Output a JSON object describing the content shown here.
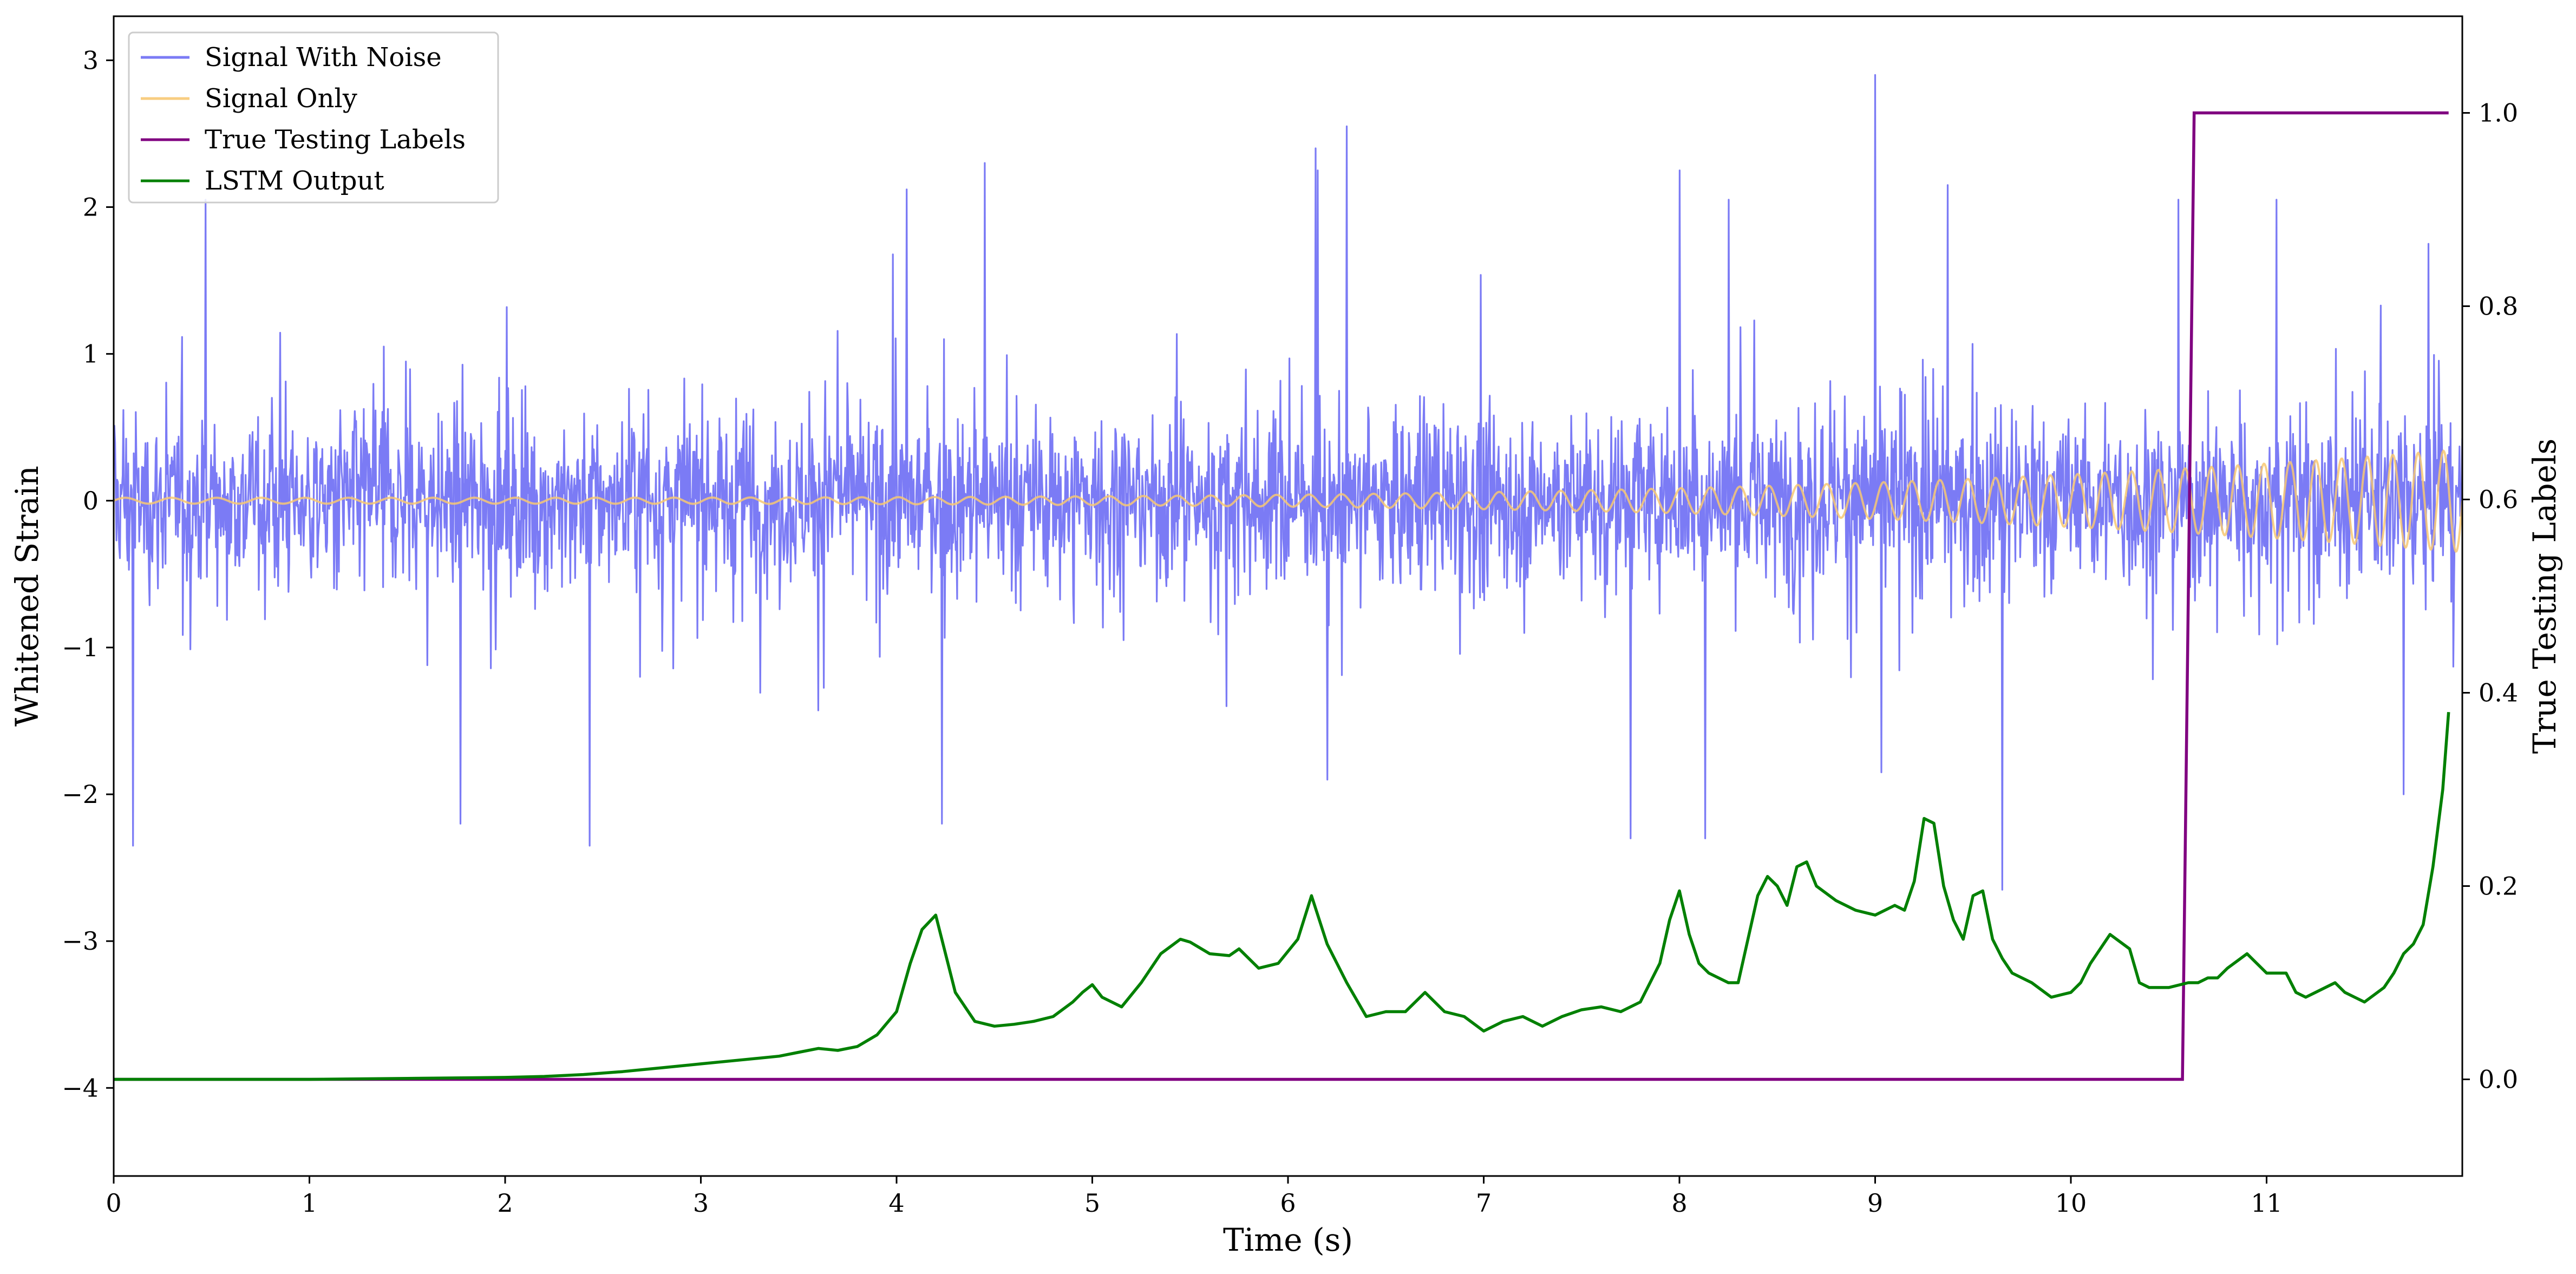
{
  "chart_data": {
    "type": "line",
    "xlabel": "Time (s)",
    "ylabel": "Whitened Strain",
    "y2label": "True Testing Labels",
    "xlim": [
      0,
      12
    ],
    "ylim": [
      -4.6,
      3.3
    ],
    "y2lim": [
      -0.1,
      1.1
    ],
    "x_ticks": [
      "0",
      "1",
      "2",
      "3",
      "4",
      "5",
      "6",
      "7",
      "8",
      "9",
      "10",
      "11"
    ],
    "y_ticks": [
      "3",
      "2",
      "1",
      "0",
      "−1",
      "−2",
      "−3",
      "−4"
    ],
    "y2_ticks": [
      "1.0",
      "0.8",
      "0.6",
      "0.4",
      "0.2",
      "0.0"
    ],
    "grid": false,
    "legend_placement": "top-left",
    "legend": [
      "Signal With Noise",
      "Signal Only",
      "True Testing Labels",
      "LSTM Output"
    ],
    "colors": {
      "signal_with_noise": "#7b7bf5",
      "signal_only": "#f7c873",
      "labels": "#800080",
      "lstm": "#008000"
    },
    "series": [
      {
        "name": "Signal With Noise",
        "axis": "left",
        "description_values": {
          "x_range": [
            0,
            12
          ],
          "typical_amplitude": 1.0,
          "peak_max": 2.9,
          "peak_min": -2.7
        },
        "spikes": [
          [
            0.47,
            2.05
          ],
          [
            0.1,
            -2.35
          ],
          [
            1.77,
            -2.2
          ],
          [
            2.43,
            -2.35
          ],
          [
            4.05,
            2.12
          ],
          [
            4.23,
            -2.2
          ],
          [
            4.45,
            2.3
          ],
          [
            6.15,
            2.25
          ],
          [
            6.3,
            2.55
          ],
          [
            6.14,
            2.4
          ],
          [
            8.0,
            2.25
          ],
          [
            7.75,
            -2.3
          ],
          [
            8.13,
            -2.3
          ],
          [
            8.25,
            2.05
          ],
          [
            9.0,
            2.9
          ],
          [
            9.37,
            2.15
          ],
          [
            9.65,
            -2.65
          ],
          [
            10.55,
            2.05
          ],
          [
            11.05,
            2.05
          ],
          [
            11.7,
            -2.0
          ],
          [
            9.03,
            -1.85
          ],
          [
            6.2,
            -1.9
          ]
        ]
      },
      {
        "name": "Signal Only",
        "axis": "left",
        "chirp": {
          "t_start": 0,
          "t_end": 12,
          "amp_start": 0.02,
          "amp_end": 0.35,
          "freq_start": 4.2,
          "freq_end": 7.8
        }
      },
      {
        "name": "True Testing Labels",
        "axis": "right",
        "x": [
          0,
          10.57,
          10.63,
          11.93
        ],
        "values": [
          0,
          0,
          1,
          1
        ]
      },
      {
        "name": "LSTM Output",
        "axis": "right",
        "x": [
          0,
          0.5,
          1.0,
          1.5,
          2.0,
          2.2,
          2.4,
          2.6,
          2.8,
          3.0,
          3.2,
          3.4,
          3.5,
          3.6,
          3.7,
          3.8,
          3.9,
          4.0,
          4.07,
          4.13,
          4.2,
          4.3,
          4.4,
          4.5,
          4.6,
          4.7,
          4.8,
          4.9,
          4.95,
          5.0,
          5.05,
          5.15,
          5.25,
          5.35,
          5.45,
          5.5,
          5.6,
          5.7,
          5.75,
          5.85,
          5.95,
          6.05,
          6.12,
          6.2,
          6.3,
          6.4,
          6.5,
          6.6,
          6.7,
          6.8,
          6.9,
          7.0,
          7.1,
          7.2,
          7.3,
          7.4,
          7.5,
          7.6,
          7.7,
          7.8,
          7.9,
          7.95,
          8.0,
          8.05,
          8.1,
          8.15,
          8.25,
          8.3,
          8.4,
          8.45,
          8.5,
          8.55,
          8.6,
          8.65,
          8.7,
          8.8,
          8.9,
          9.0,
          9.1,
          9.15,
          9.2,
          9.25,
          9.3,
          9.35,
          9.4,
          9.45,
          9.5,
          9.55,
          9.6,
          9.65,
          9.7,
          9.8,
          9.9,
          10.0,
          10.05,
          10.1,
          10.2,
          10.3,
          10.35,
          10.4,
          10.5,
          10.6,
          10.65,
          10.7,
          10.75,
          10.8,
          10.9,
          10.95,
          11.0,
          11.1,
          11.15,
          11.2,
          11.25,
          11.35,
          11.4,
          11.45,
          11.5,
          11.6,
          11.65,
          11.7,
          11.75,
          11.8,
          11.85,
          11.9,
          11.93
        ],
        "values": [
          0,
          0,
          0,
          0.001,
          0.002,
          0.003,
          0.005,
          0.008,
          0.012,
          0.016,
          0.02,
          0.024,
          0.028,
          0.032,
          0.03,
          0.034,
          0.046,
          0.07,
          0.12,
          0.155,
          0.17,
          0.09,
          0.06,
          0.055,
          0.057,
          0.06,
          0.065,
          0.08,
          0.09,
          0.098,
          0.085,
          0.075,
          0.1,
          0.13,
          0.145,
          0.142,
          0.13,
          0.128,
          0.135,
          0.115,
          0.12,
          0.145,
          0.19,
          0.14,
          0.1,
          0.065,
          0.07,
          0.07,
          0.09,
          0.07,
          0.065,
          0.05,
          0.06,
          0.065,
          0.055,
          0.065,
          0.072,
          0.075,
          0.07,
          0.08,
          0.12,
          0.165,
          0.195,
          0.15,
          0.12,
          0.11,
          0.1,
          0.1,
          0.19,
          0.21,
          0.2,
          0.18,
          0.22,
          0.225,
          0.2,
          0.185,
          0.175,
          0.17,
          0.18,
          0.175,
          0.205,
          0.27,
          0.265,
          0.2,
          0.165,
          0.145,
          0.19,
          0.195,
          0.145,
          0.125,
          0.11,
          0.1,
          0.085,
          0.09,
          0.1,
          0.12,
          0.15,
          0.135,
          0.1,
          0.095,
          0.095,
          0.1,
          0.1,
          0.105,
          0.105,
          0.115,
          0.13,
          0.12,
          0.11,
          0.11,
          0.09,
          0.085,
          0.09,
          0.1,
          0.09,
          0.085,
          0.08,
          0.095,
          0.11,
          0.13,
          0.14,
          0.16,
          0.22,
          0.3,
          0.38
        ]
      }
    ]
  }
}
